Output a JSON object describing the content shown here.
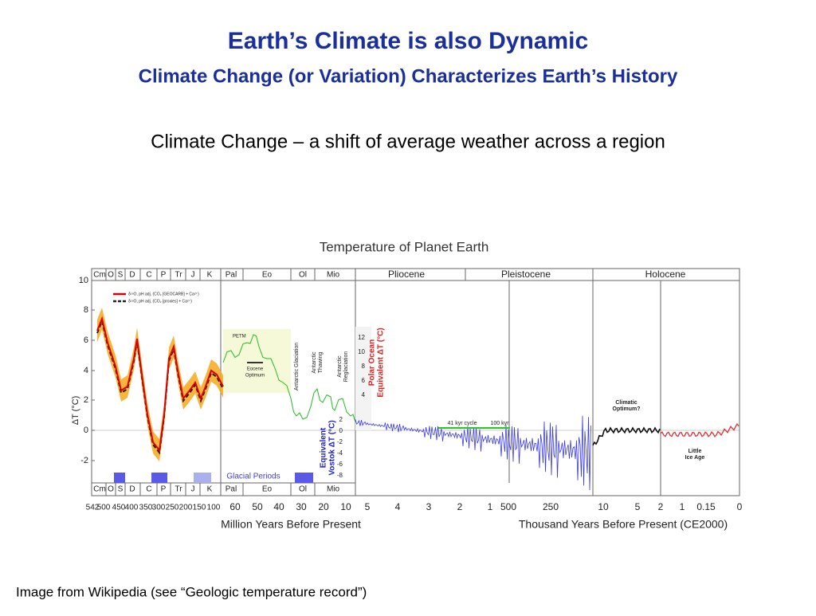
{
  "slide": {
    "title": "Earth’s Climate is also Dynamic",
    "subtitle": "Climate Change (or Variation) Characterizes Earth’s History",
    "body": "Climate Change – a shift of average weather across a region",
    "footer": "Image from Wikipedia (see “Geologic temperature record”)"
  },
  "figure": {
    "title": "Temperature of Planet Earth",
    "periods_top": [
      "Cm",
      "O",
      "S",
      "D",
      "C",
      "P",
      "Tr",
      "J",
      "K",
      "Pal",
      "Eo",
      "Ol",
      "Mio",
      "Pliocene",
      "Pleistocene",
      "Holocene"
    ],
    "periods_bottom": [
      "Cm",
      "O",
      "S",
      "D",
      "C",
      "P",
      "Tr",
      "J",
      "K",
      "Pal",
      "Eo",
      "Ol",
      "Mio"
    ],
    "y_axis_label": "ΔT (°C)",
    "y_ticks": [
      "10",
      "8",
      "6",
      "4",
      "2",
      "0",
      "-2"
    ],
    "x_ticks_million": [
      "542",
      "500",
      "450",
      "400",
      "350",
      "300",
      "250",
      "200",
      "150",
      "100",
      "60",
      "50",
      "40",
      "30",
      "20",
      "10",
      "5",
      "4",
      "3",
      "2",
      "1"
    ],
    "x_ticks_thousand": [
      "500",
      "250",
      "10",
      "5",
      "2",
      "1",
      "0.15",
      "0"
    ],
    "x_label_million": "Million Years Before Present",
    "x_label_thousand": "Thousand Years Before Present (CE2000)",
    "legend": [
      "δ¹⁸O, pH adj. (CO₂ [GEOCARB] + Ca²⁺)",
      "δ¹⁸O, pH adj. (CO₂ [proxies] + Ca²⁺)"
    ],
    "annotations": {
      "petm": "PETM",
      "eocene_optimum": [
        "Eocene",
        "Optimum"
      ],
      "antarctic_glaciation": "Antarctic Glaciation",
      "antarctic_thawing": [
        "Antarctic",
        "Thawing"
      ],
      "antarctic_reglaciation": [
        "Antarctic",
        "Reglaciation"
      ],
      "kyr41": "41 kyr cycle",
      "kyr100": "100 kyr",
      "climatic_optimum": [
        "Climatic",
        "Optimum?"
      ],
      "little_ice_age": [
        "Little",
        "Ice Age"
      ],
      "glacial_periods": "Glacial Periods"
    },
    "polar_axis": {
      "label": [
        "Polar Ocean",
        "Equivalent ΔT (°C)"
      ],
      "ticks": [
        "12",
        "10",
        "8",
        "6",
        "4"
      ]
    },
    "vostok_axis": {
      "label": [
        "Equivalent",
        "Vostok ΔT (°C)"
      ],
      "ticks": [
        "2",
        "0",
        "-2",
        "-4",
        "-6",
        "-8"
      ]
    }
  }
}
